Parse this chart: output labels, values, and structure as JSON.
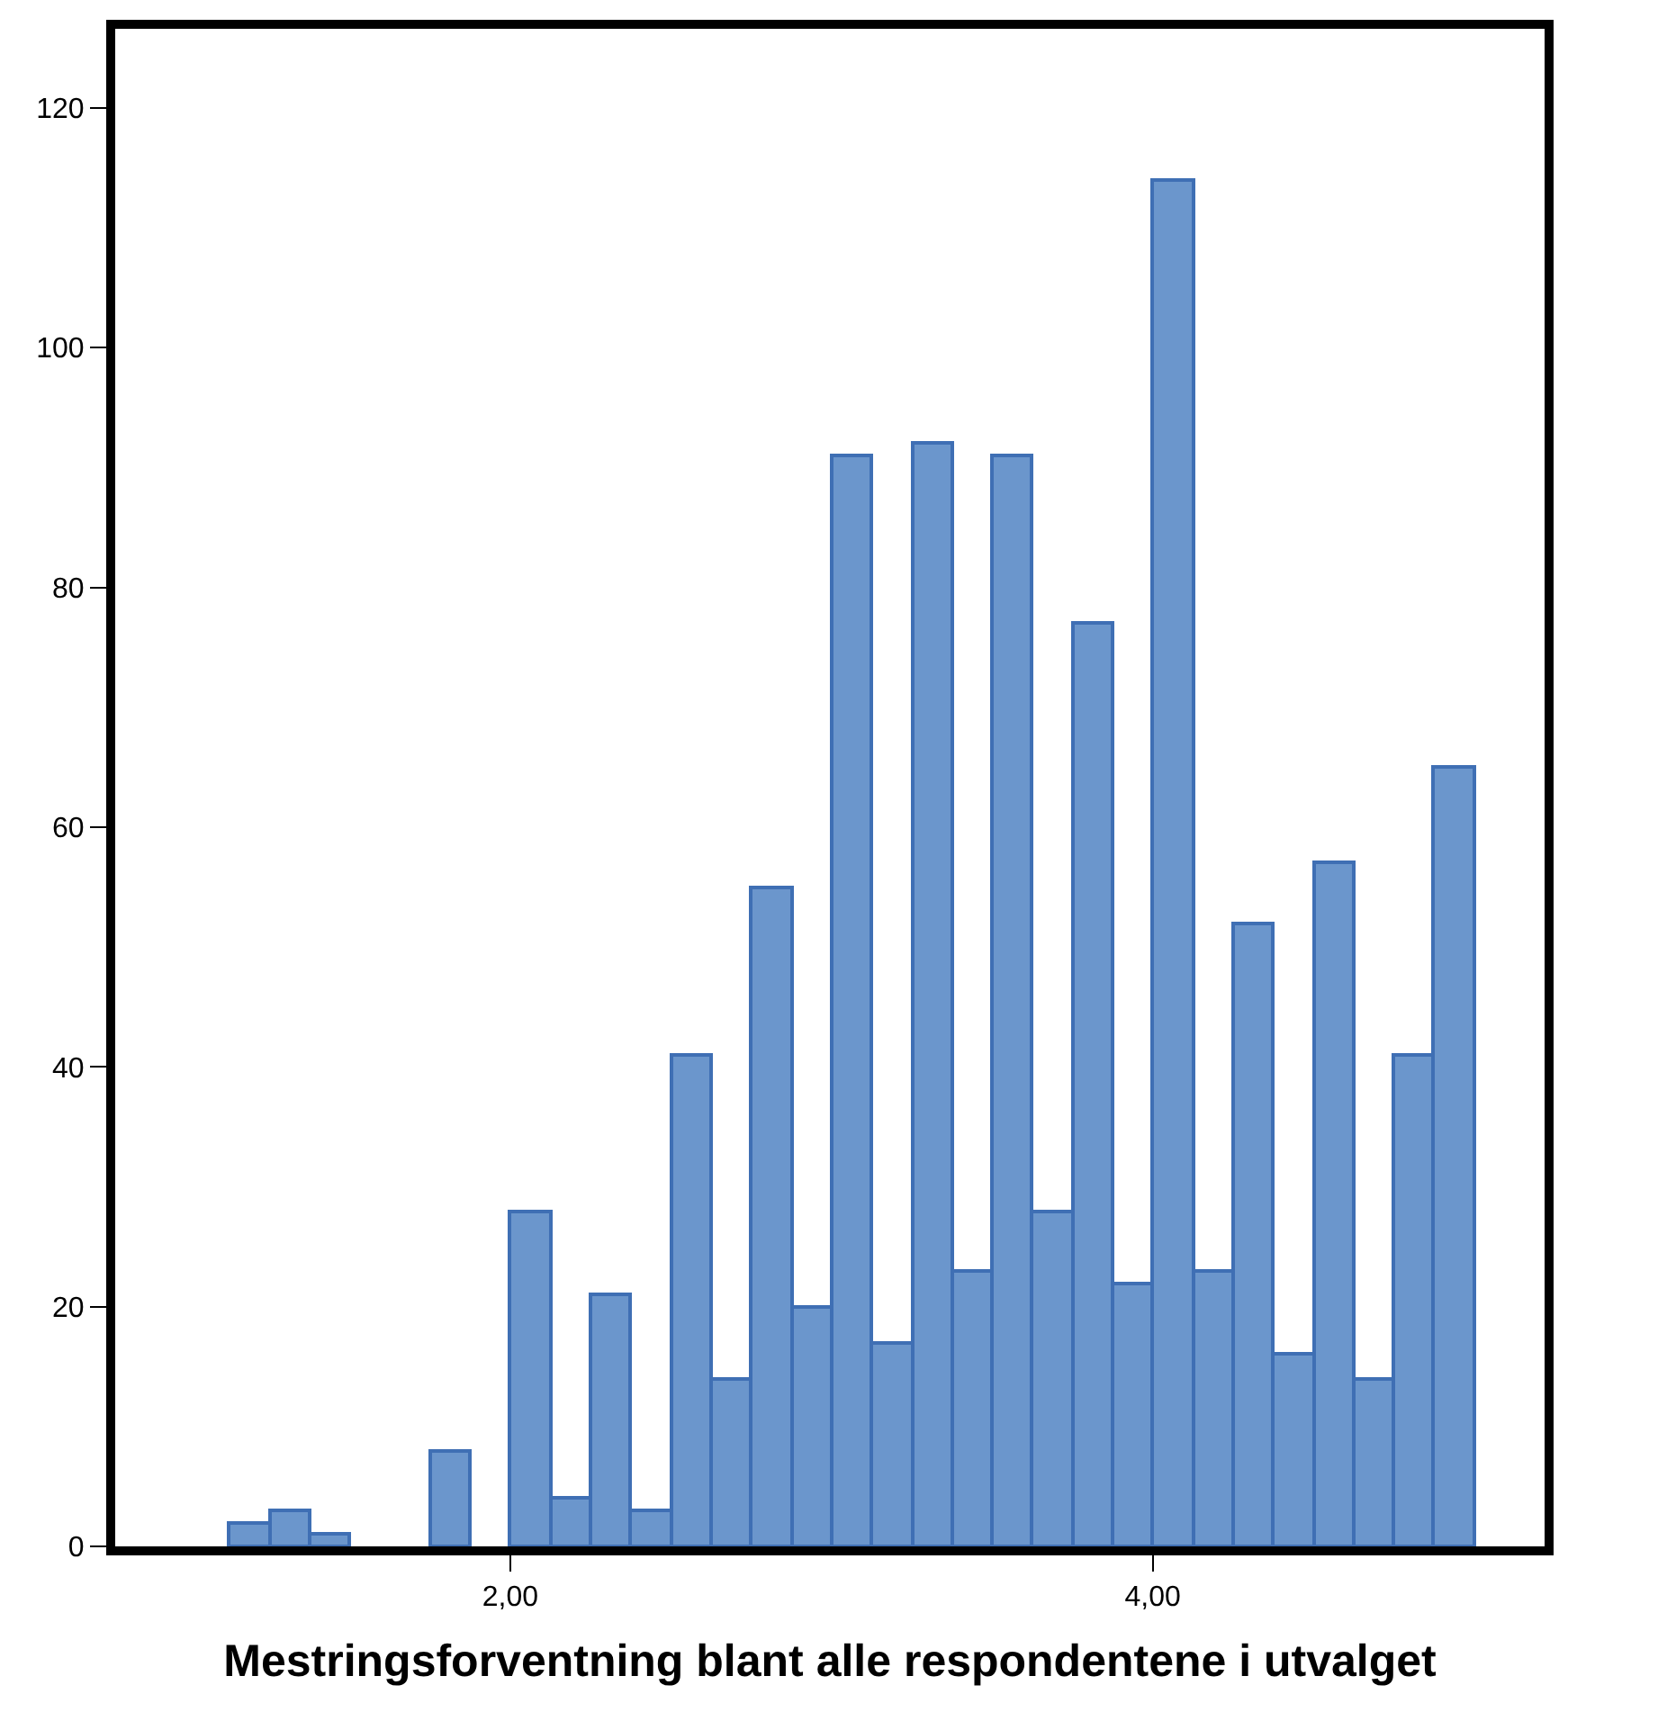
{
  "chart_data": {
    "type": "histogram",
    "xlabel": "Mestringsforventning blant alle respondentene i utvalget",
    "bins": [
      1.125,
      1.25,
      1.375,
      1.5,
      1.625,
      1.75,
      1.875,
      2.0,
      2.125,
      2.25,
      2.375,
      2.5,
      2.625,
      2.75,
      2.875,
      3.0,
      3.125,
      3.25,
      3.375,
      3.5,
      3.625,
      3.75,
      3.875,
      4.0,
      4.125,
      4.25,
      4.375,
      4.5,
      4.625,
      4.75,
      4.875,
      5.0
    ],
    "values": [
      2,
      3,
      1,
      0,
      0,
      8,
      0,
      28,
      4,
      21,
      3,
      41,
      14,
      55,
      20,
      91,
      17,
      92,
      23,
      91,
      28,
      77,
      22,
      114,
      23,
      52,
      16,
      57,
      14,
      41,
      65
    ],
    "color": "#6b96cc",
    "xlim": [
      0.77,
      5.22
    ],
    "xticks": [
      {
        "value": 2,
        "label": "2,00"
      },
      {
        "value": 4,
        "label": "4,00"
      }
    ],
    "ylim": [
      0,
      126.6
    ],
    "yticks": [
      0,
      20,
      40,
      60,
      80,
      100,
      120
    ]
  }
}
